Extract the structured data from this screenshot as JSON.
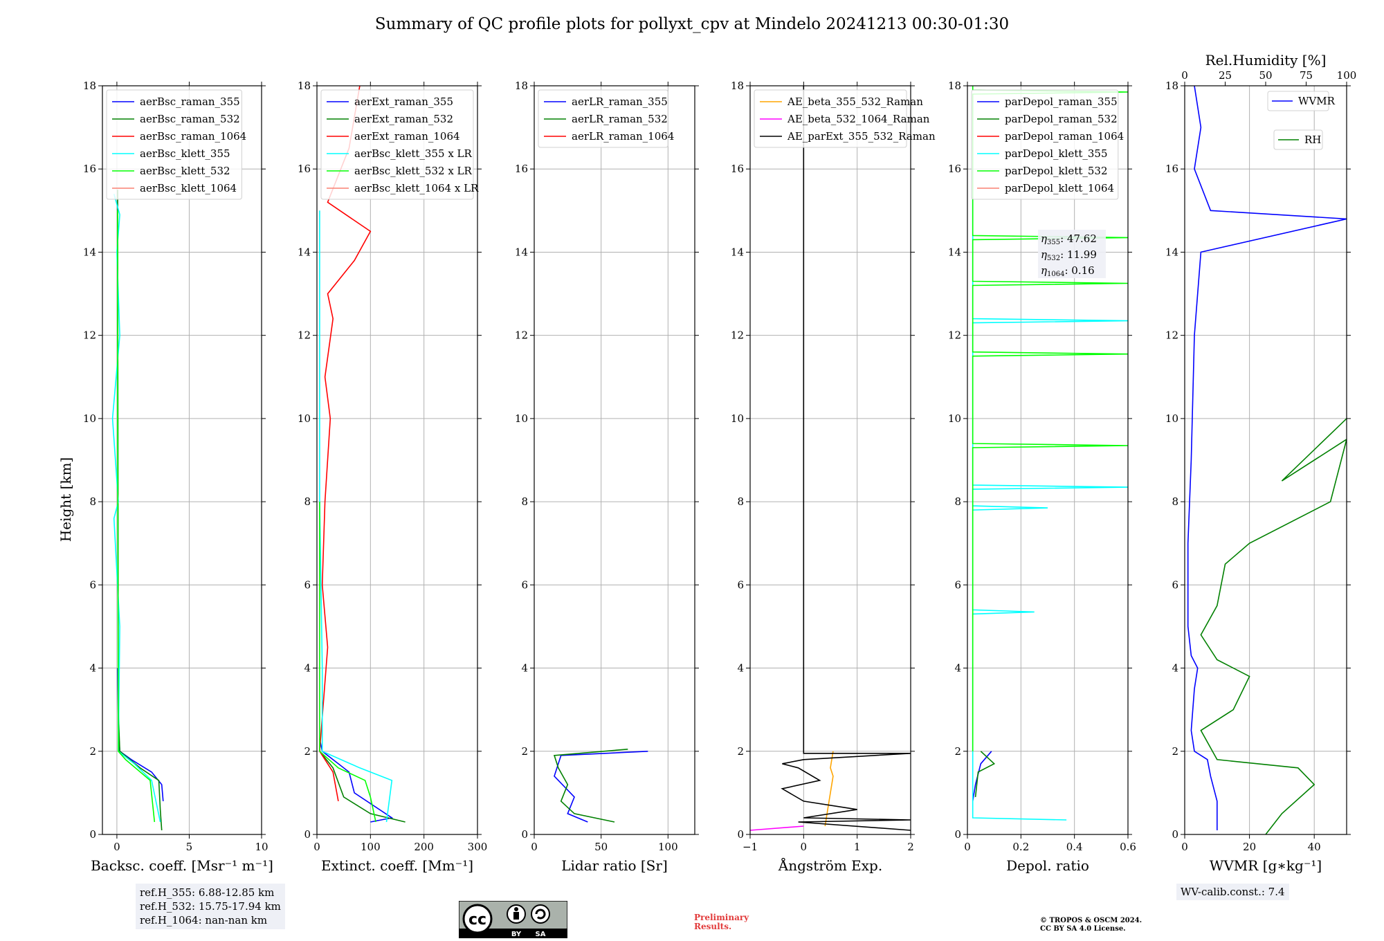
{
  "title": "Summary of QC profile plots for pollyxt_cpv at Mindelo 20241213 00:30-01:30",
  "ylabel": "Height [km]",
  "ref_heights": [
    "ref.H_355: 6.88-12.85 km",
    "ref.H_532: 15.75-17.94 km",
    "ref.H_1064: nan-nan km"
  ],
  "wv_calib": "WV-calib.const.: 7.4",
  "preliminary": [
    "Preliminary",
    "Results."
  ],
  "copyright": [
    "© TROPOS & OSCM 2024.",
    "CC BY SA 4.0 License."
  ],
  "license_badge": {
    "by": "BY",
    "sa": "SA"
  },
  "eta_labels": [
    {
      "sub": "355",
      "value": ": 47.62"
    },
    {
      "sub": "532",
      "value": ": 11.99"
    },
    {
      "sub": "1064",
      "value": ": 0.16"
    }
  ],
  "colors": {
    "blue": "#0000ff",
    "green": "#008000",
    "red": "#ff0000",
    "cyan": "#00ffff",
    "lime": "#00ff00",
    "salmon": "#fa8072",
    "orange": "#ffa500",
    "magenta": "#ff00ff",
    "black": "#000000"
  },
  "chart_data": [
    {
      "type": "line",
      "xlabel": "Backsc. coeff. [Msr⁻¹ m⁻¹]",
      "xlim": [
        -1,
        10
      ],
      "ylim": [
        0,
        18
      ],
      "xticks": [
        0,
        5,
        10
      ],
      "yticks": [
        0,
        2,
        4,
        6,
        8,
        10,
        12,
        14,
        16,
        18
      ],
      "legend": [
        "aerBsc_raman_355",
        "aerBsc_raman_532",
        "aerBsc_raman_1064",
        "aerBsc_klett_355",
        "aerBsc_klett_532",
        "aerBsc_klett_1064"
      ],
      "series": [
        {
          "name": "aerBsc_raman_355",
          "color": "#0000ff",
          "points": [
            [
              3.2,
              0.8
            ],
            [
              3.1,
              1.2
            ],
            [
              2.4,
              1.5
            ],
            [
              1.0,
              1.8
            ],
            [
              0.2,
              2.0
            ],
            [
              0.1,
              2.6
            ],
            [
              0.05,
              4
            ]
          ]
        },
        {
          "name": "aerBsc_raman_532",
          "color": "#008000",
          "points": [
            [
              3.1,
              0.1
            ],
            [
              3.0,
              0.6
            ],
            [
              2.9,
              1.3
            ],
            [
              1.6,
              1.6
            ],
            [
              0.2,
              2.0
            ],
            [
              0.1,
              3
            ],
            [
              0.05,
              15.5
            ]
          ]
        },
        {
          "name": "aerBsc_klett_355",
          "color": "#00ffff",
          "points": [
            [
              3.0,
              0.3
            ],
            [
              2.4,
              1.3
            ],
            [
              1.2,
              1.7
            ],
            [
              0.1,
              2.0
            ],
            [
              0.2,
              5
            ],
            [
              -0.2,
              7.6
            ],
            [
              0.1,
              8
            ],
            [
              -0.3,
              10
            ],
            [
              0.2,
              12
            ],
            [
              0.0,
              14
            ],
            [
              0.2,
              14.9
            ],
            [
              -0.2,
              15.4
            ]
          ]
        },
        {
          "name": "aerBsc_klett_532",
          "color": "#00ff00",
          "points": [
            [
              2.6,
              0.3
            ],
            [
              2.3,
              1.3
            ],
            [
              0.6,
              1.8
            ],
            [
              0.1,
              2.0
            ],
            [
              0.05,
              10
            ],
            [
              0.05,
              15
            ]
          ]
        }
      ]
    },
    {
      "type": "line",
      "xlabel": "Extinct. coeff. [Mm⁻¹]",
      "xlim": [
        0,
        300
      ],
      "ylim": [
        0,
        18
      ],
      "xticks": [
        0,
        100,
        200,
        300
      ],
      "yticks": [
        0,
        2,
        4,
        6,
        8,
        10,
        12,
        14,
        16,
        18
      ],
      "legend": [
        "aerExt_raman_355",
        "aerExt_raman_532",
        "aerExt_raman_1064",
        "aerBsc_klett_355 x LR",
        "aerBsc_klett_532 x LR",
        "aerBsc_klett_1064 x LR"
      ],
      "series": [
        {
          "name": "aerExt_raman_355",
          "color": "#0000ff",
          "points": [
            [
              100,
              0.3
            ],
            [
              140,
              0.4
            ],
            [
              70,
              1.0
            ],
            [
              60,
              1.5
            ],
            [
              10,
              2.0
            ],
            [
              5,
              2.3
            ]
          ]
        },
        {
          "name": "aerExt_raman_532",
          "color": "#008000",
          "points": [
            [
              165,
              0.3
            ],
            [
              100,
              0.5
            ],
            [
              50,
              0.9
            ],
            [
              30,
              1.6
            ],
            [
              5,
              2.0
            ]
          ]
        },
        {
          "name": "aerExt_raman_1064",
          "color": "#ff0000",
          "points": [
            [
              40,
              0.8
            ],
            [
              30,
              1.5
            ],
            [
              5,
              2.0
            ],
            [
              20,
              4.5
            ],
            [
              10,
              6
            ],
            [
              15,
              8
            ],
            [
              25,
              10
            ],
            [
              15,
              11
            ],
            [
              30,
              12.4
            ],
            [
              20,
              13
            ],
            [
              70,
              13.8
            ],
            [
              100,
              14.5
            ],
            [
              20,
              15.2
            ],
            [
              60,
              16.5
            ],
            [
              80,
              18
            ]
          ]
        },
        {
          "name": "aerBsc_klett_355 x LR",
          "color": "#00ffff",
          "points": [
            [
              130,
              0.3
            ],
            [
              140,
              1.3
            ],
            [
              80,
              1.6
            ],
            [
              10,
              2.0
            ],
            [
              10,
              4
            ],
            [
              5,
              8
            ],
            [
              5,
              12
            ],
            [
              5,
              15
            ]
          ]
        },
        {
          "name": "aerBsc_klett_532 x LR",
          "color": "#00ff00",
          "points": [
            [
              110,
              0.3
            ],
            [
              100,
              0.9
            ],
            [
              90,
              1.3
            ],
            [
              40,
              1.6
            ],
            [
              5,
              2.0
            ],
            [
              5,
              4
            ],
            [
              5,
              8
            ]
          ]
        }
      ]
    },
    {
      "type": "line",
      "xlabel": "Lidar ratio [Sr]",
      "xlim": [
        0,
        120
      ],
      "ylim": [
        0,
        18
      ],
      "xticks": [
        0,
        50,
        100
      ],
      "yticks": [
        0,
        2,
        4,
        6,
        8,
        10,
        12,
        14,
        16,
        18
      ],
      "legend": [
        "aerLR_raman_355",
        "aerLR_raman_532",
        "aerLR_raman_1064"
      ],
      "series": [
        {
          "name": "aerLR_raman_355",
          "color": "#0000ff",
          "points": [
            [
              40,
              0.3
            ],
            [
              25,
              0.5
            ],
            [
              30,
              0.9
            ],
            [
              15,
              1.4
            ],
            [
              20,
              1.9
            ],
            [
              85,
              2.0
            ]
          ]
        },
        {
          "name": "aerLR_raman_532",
          "color": "#008000",
          "points": [
            [
              60,
              0.3
            ],
            [
              30,
              0.5
            ],
            [
              20,
              0.8
            ],
            [
              25,
              1.2
            ],
            [
              18,
              1.6
            ],
            [
              15,
              1.9
            ],
            [
              70,
              2.05
            ]
          ]
        }
      ]
    },
    {
      "type": "line",
      "xlabel": "Ångström Exp.",
      "xlim": [
        -1,
        2
      ],
      "ylim": [
        0,
        18
      ],
      "xticks": [
        -1,
        0,
        1,
        2
      ],
      "yticks": [
        0,
        2,
        4,
        6,
        8,
        10,
        12,
        14,
        16,
        18
      ],
      "legend": [
        "AE_beta_355_532_Raman",
        "AE_beta_532_1064_Raman",
        "AE_parExt_355_532_Raman"
      ],
      "series": [
        {
          "name": "AE_beta_355_532_Raman",
          "color": "#ffa500",
          "points": [
            [
              0.4,
              0.2
            ],
            [
              0.45,
              0.6
            ],
            [
              0.5,
              1.0
            ],
            [
              0.55,
              1.4
            ],
            [
              0.5,
              1.6
            ],
            [
              0.55,
              2.0
            ]
          ]
        },
        {
          "name": "AE_beta_532_1064_Raman",
          "color": "#ff00ff",
          "points": [
            [
              -1,
              0.1
            ],
            [
              0,
              0.2
            ]
          ]
        },
        {
          "name": "AE_parExt_355_532_Raman",
          "color": "#000000",
          "points": [
            [
              2,
              0.1
            ],
            [
              -0.1,
              0.3
            ],
            [
              2,
              0.35
            ],
            [
              0,
              0.4
            ],
            [
              1.0,
              0.6
            ],
            [
              0,
              0.8
            ],
            [
              -0.4,
              1.1
            ],
            [
              0.3,
              1.3
            ],
            [
              -0.1,
              1.6
            ],
            [
              -0.4,
              1.7
            ],
            [
              0,
              1.8
            ],
            [
              2,
              1.95
            ],
            [
              0,
              1.95
            ],
            [
              0,
              18
            ]
          ]
        }
      ]
    },
    {
      "type": "line",
      "xlabel": "Depol. ratio",
      "xlim": [
        0,
        0.6
      ],
      "ylim": [
        0,
        18
      ],
      "xticks": [
        0,
        0.2,
        0.4,
        0.6
      ],
      "yticks": [
        0,
        2,
        4,
        6,
        8,
        10,
        12,
        14,
        16,
        18
      ],
      "legend": [
        "parDepol_raman_355",
        "parDepol_raman_532",
        "parDepol_raman_1064",
        "parDepol_klett_355",
        "parDepol_klett_532",
        "parDepol_klett_1064"
      ],
      "series": [
        {
          "name": "parDepol_raman_355",
          "color": "#0000ff",
          "points": [
            [
              0.02,
              0.8
            ],
            [
              0.03,
              1.2
            ],
            [
              0.05,
              1.7
            ],
            [
              0.09,
              2.0
            ]
          ]
        },
        {
          "name": "parDepol_raman_532",
          "color": "#008000",
          "points": [
            [
              0.03,
              0.9
            ],
            [
              0.04,
              1.5
            ],
            [
              0.1,
              1.7
            ],
            [
              0.05,
              2.0
            ]
          ]
        },
        {
          "name": "parDepol_klett_355",
          "color": "#00ffff",
          "points": [
            [
              0.37,
              0.35
            ],
            [
              0.02,
              0.4
            ],
            [
              0.02,
              5.3
            ],
            [
              0.25,
              5.35
            ],
            [
              0.02,
              5.4
            ],
            [
              0.02,
              7.8
            ],
            [
              0.3,
              7.85
            ],
            [
              0.02,
              7.9
            ],
            [
              0.02,
              8.3
            ],
            [
              0.6,
              8.35
            ],
            [
              0.02,
              8.4
            ],
            [
              0.02,
              12.3
            ],
            [
              0.6,
              12.35
            ],
            [
              0.02,
              12.4
            ],
            [
              0.02,
              16
            ]
          ]
        },
        {
          "name": "parDepol_klett_532",
          "color": "#00ff00",
          "points": [
            [
              0.02,
              2.0
            ],
            [
              0.02,
              9.3
            ],
            [
              0.6,
              9.35
            ],
            [
              0.02,
              9.4
            ],
            [
              0.02,
              11.5
            ],
            [
              0.6,
              11.55
            ],
            [
              0.02,
              11.6
            ],
            [
              0.02,
              13.2
            ],
            [
              0.6,
              13.25
            ],
            [
              0.02,
              13.3
            ],
            [
              0.02,
              14.3
            ],
            [
              0.6,
              14.35
            ],
            [
              0.02,
              14.4
            ],
            [
              0.02,
              17.8
            ],
            [
              0.6,
              17.85
            ],
            [
              0.02,
              17.9
            ],
            [
              0.02,
              18
            ]
          ]
        }
      ]
    },
    {
      "type": "line",
      "xlabel": "WVMR [g∗kg⁻¹]",
      "x2label": "Rel.Humidity [%]",
      "xlim": [
        0,
        50
      ],
      "x2lim": [
        0,
        100
      ],
      "ylim": [
        0,
        18
      ],
      "xticks": [
        0,
        20,
        40
      ],
      "x2ticks": [
        0,
        25,
        50,
        75,
        100
      ],
      "yticks": [
        0,
        2,
        4,
        6,
        8,
        10,
        12,
        14,
        16,
        18
      ],
      "legend": [
        "WVMR",
        "RH"
      ],
      "series": [
        {
          "name": "WVMR",
          "color": "#0000ff",
          "points": [
            [
              10,
              0.1
            ],
            [
              10,
              0.8
            ],
            [
              8,
              1.4
            ],
            [
              7,
              1.8
            ],
            [
              3,
              2.0
            ],
            [
              2,
              2.5
            ],
            [
              3,
              3.5
            ],
            [
              4,
              4.0
            ],
            [
              2,
              4.3
            ],
            [
              1,
              5
            ],
            [
              1,
              7
            ],
            [
              2,
              9
            ],
            [
              3,
              12
            ],
            [
              5,
              14
            ],
            [
              50,
              14.8
            ],
            [
              8,
              15
            ],
            [
              3,
              16
            ],
            [
              5,
              17
            ],
            [
              3,
              18
            ]
          ]
        },
        {
          "name": "RH",
          "color": "#008000",
          "points": [
            [
              50,
              0.0
            ],
            [
              60,
              0.5
            ],
            [
              80,
              1.2
            ],
            [
              70,
              1.6
            ],
            [
              20,
              1.8
            ],
            [
              10,
              2.5
            ],
            [
              30,
              3.0
            ],
            [
              40,
              3.8
            ],
            [
              20,
              4.2
            ],
            [
              10,
              4.8
            ],
            [
              20,
              5.5
            ],
            [
              25,
              6.5
            ],
            [
              40,
              7.0
            ],
            [
              90,
              8.0
            ],
            [
              100,
              9.5
            ],
            [
              60,
              8.5
            ],
            [
              100,
              10
            ]
          ]
        }
      ]
    }
  ]
}
